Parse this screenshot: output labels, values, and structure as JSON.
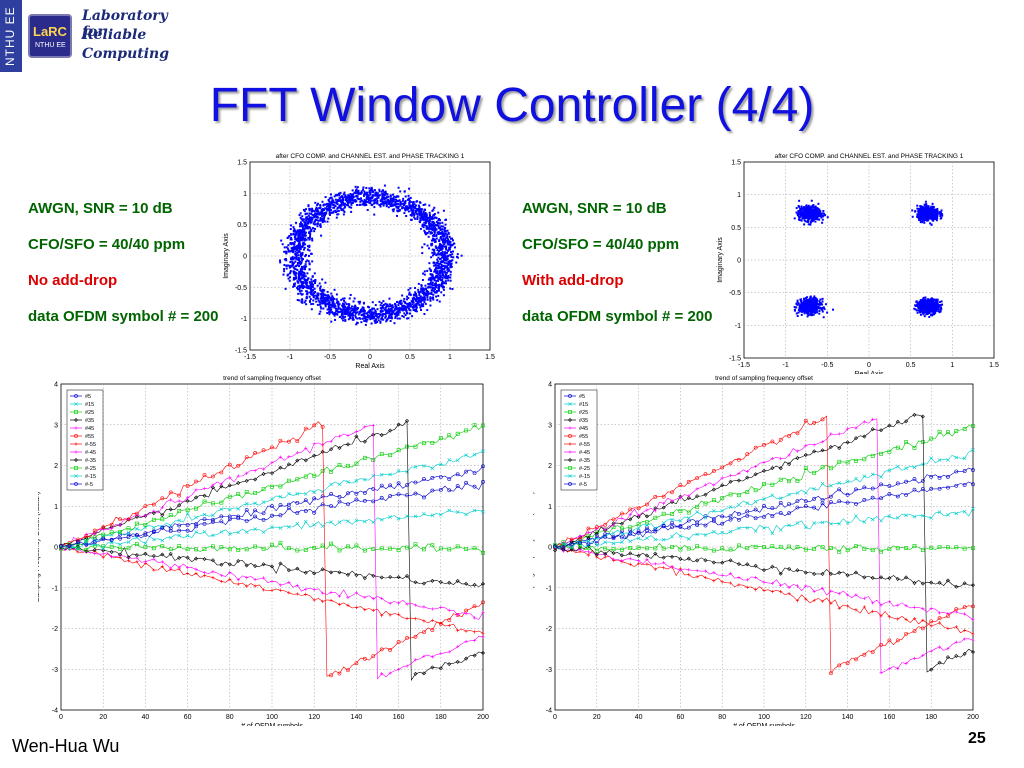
{
  "side_tab": {
    "label": "NTHU EE"
  },
  "logo": {
    "chip_text": "LaRC",
    "chip_sub": "NTHU EE",
    "line1": "Laboratory for",
    "line2": "Reliable",
    "line3": "Computing"
  },
  "title": "FFT Window Controller (4/4)",
  "left_caption": {
    "line1": "AWGN, SNR = 10 dB",
    "line2": "CFO/SFO = 40/40 ppm",
    "line3": "No add-drop",
    "line4": "data OFDM symbol # = 200"
  },
  "right_caption": {
    "line1": "AWGN, SNR = 10 dB",
    "line2": "CFO/SFO = 40/40 ppm",
    "line3": "With add-drop",
    "line4": "data OFDM symbol # = 200"
  },
  "footer": {
    "author": "Wen-Hua Wu",
    "page": "25"
  },
  "chart_data": [
    {
      "type": "scatter",
      "title": "after CFO COMP. and CHANNEL EST. and PHASE TRACKING 1",
      "xlabel": "Real Axis",
      "ylabel": "Imaginary Axis",
      "xlim": [
        -1.5,
        1.5
      ],
      "ylim": [
        -1.5,
        1.5
      ],
      "xticks": [
        "-1.5",
        "-1",
        "-0.5",
        "0",
        "0.5",
        "1",
        "1.5"
      ],
      "yticks": [
        "1.5",
        "1",
        "0.5",
        "0",
        "-0.5",
        "-1",
        "-1.5"
      ],
      "grid": true,
      "color": "#0000ff",
      "pattern": "ring",
      "ring_center": [
        0,
        0
      ],
      "ring_radius_x": 0.93,
      "ring_radius_y": 0.93
    },
    {
      "type": "scatter",
      "title": "after CFO COMP. and CHANNEL EST. and PHASE TRACKING 1",
      "xlabel": "Real Axis",
      "ylabel": "Imaginary Axis",
      "xlim": [
        -1.5,
        1.5
      ],
      "ylim": [
        -1.5,
        1.5
      ],
      "xticks": [
        "-1.5",
        "-1",
        "-0.5",
        "0",
        "0.5",
        "1",
        "1.5"
      ],
      "yticks": [
        "1.5",
        "1",
        "0.5",
        "0",
        "-0.5",
        "-1",
        "-1.5"
      ],
      "grid": true,
      "color": "#0000ff",
      "pattern": "clusters",
      "clusters": [
        [
          -0.71,
          0.71
        ],
        [
          0.71,
          0.71
        ],
        [
          -0.71,
          -0.71
        ],
        [
          0.71,
          -0.71
        ]
      ]
    },
    {
      "type": "line",
      "title": "trend of sampling frequency offset",
      "xlabel": "# of OFDM symbols",
      "ylabel": "Sampling Frequency Offset (radian)",
      "xlim": [
        0,
        200
      ],
      "ylim": [
        -4,
        4
      ],
      "xticks": [
        "0",
        "20",
        "40",
        "60",
        "80",
        "100",
        "120",
        "140",
        "160",
        "180",
        "200"
      ],
      "yticks": [
        "4",
        "3",
        "2",
        "1",
        "0",
        "-1",
        "-2",
        "-3",
        "-4"
      ],
      "grid": true,
      "legend_position": "top-left",
      "series": [
        {
          "name": "#5",
          "color": "#0000cc",
          "slope": 0.0095,
          "marker": "o",
          "wrap_at": null
        },
        {
          "name": "#15",
          "color": "#00cccc",
          "slope": 0.0115,
          "marker": "x",
          "wrap_at": null
        },
        {
          "name": "#25",
          "color": "#00cc00",
          "slope": 0.0148,
          "marker": "s",
          "wrap_at": null
        },
        {
          "name": "#35",
          "color": "#000000",
          "slope": 0.0185,
          "marker": "d",
          "wrap_at": 165
        },
        {
          "name": "#45",
          "color": "#ff00ff",
          "slope": 0.0205,
          "marker": "*",
          "wrap_at": 150
        },
        {
          "name": "#55",
          "color": "#ff0000",
          "slope": 0.0245,
          "marker": "o",
          "wrap_at": 126
        },
        {
          "name": "#-55",
          "color": "#ff0000",
          "slope": -0.0105,
          "marker": "*",
          "wrap_at": null
        },
        {
          "name": "#-45",
          "color": "#ff00ff",
          "slope": -0.0085,
          "marker": "*",
          "wrap_at": null
        },
        {
          "name": "#-35",
          "color": "#000000",
          "slope": -0.0048,
          "marker": "d",
          "wrap_at": null
        },
        {
          "name": "#-25",
          "color": "#00cc00",
          "slope": -0.0002,
          "marker": "s",
          "wrap_at": null
        },
        {
          "name": "#-15",
          "color": "#00cccc",
          "slope": 0.0045,
          "marker": "x",
          "wrap_at": null
        },
        {
          "name": "#-5",
          "color": "#0000cc",
          "slope": 0.0078,
          "marker": "o",
          "wrap_at": null
        }
      ]
    },
    {
      "type": "line",
      "title": "trend of sampling frequency offset",
      "xlabel": "# of OFDM symbols",
      "ylabel": "Sampling Frequency Offset (radian)",
      "xlim": [
        0,
        200
      ],
      "ylim": [
        -4,
        4
      ],
      "xticks": [
        "0",
        "20",
        "40",
        "60",
        "80",
        "100",
        "120",
        "140",
        "160",
        "180",
        "200"
      ],
      "yticks": [
        "4",
        "3",
        "2",
        "1",
        "0",
        "-1",
        "-2",
        "-3",
        "-4"
      ],
      "grid": true,
      "legend_position": "top-left",
      "series": [
        {
          "name": "#5",
          "color": "#0000cc",
          "slope": 0.0095,
          "marker": "o",
          "wrap_at": null
        },
        {
          "name": "#15",
          "color": "#00cccc",
          "slope": 0.0115,
          "marker": "x",
          "wrap_at": null
        },
        {
          "name": "#25",
          "color": "#00cc00",
          "slope": 0.0148,
          "marker": "s",
          "wrap_at": null
        },
        {
          "name": "#35",
          "color": "#000000",
          "slope": 0.0185,
          "marker": "d",
          "wrap_at": 178
        },
        {
          "name": "#45",
          "color": "#ff00ff",
          "slope": 0.0205,
          "marker": "*",
          "wrap_at": 156
        },
        {
          "name": "#55",
          "color": "#ff0000",
          "slope": 0.0245,
          "marker": "o",
          "wrap_at": 132
        },
        {
          "name": "#-55",
          "color": "#ff0000",
          "slope": -0.0105,
          "marker": "*",
          "wrap_at": null
        },
        {
          "name": "#-45",
          "color": "#ff00ff",
          "slope": -0.0085,
          "marker": "*",
          "wrap_at": null
        },
        {
          "name": "#-35",
          "color": "#000000",
          "slope": -0.0048,
          "marker": "d",
          "wrap_at": null
        },
        {
          "name": "#-25",
          "color": "#00cc00",
          "slope": -0.0002,
          "marker": "s",
          "wrap_at": null
        },
        {
          "name": "#-15",
          "color": "#00cccc",
          "slope": 0.0045,
          "marker": "x",
          "wrap_at": null
        },
        {
          "name": "#-5",
          "color": "#0000cc",
          "slope": 0.0078,
          "marker": "o",
          "wrap_at": null
        }
      ]
    }
  ]
}
